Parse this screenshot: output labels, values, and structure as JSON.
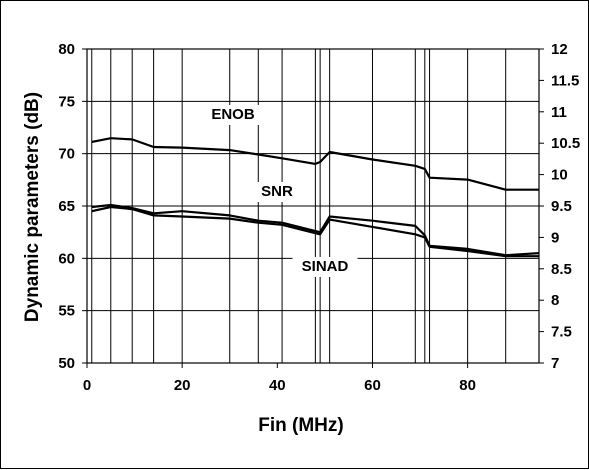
{
  "chart_data": {
    "type": "line",
    "title": "",
    "xlabel": "Fin (MHz)",
    "ylabel": "Dynamic parameters (dB)",
    "xlim": [
      0,
      95
    ],
    "ylim": [
      50,
      80
    ],
    "y2lim": [
      7,
      12
    ],
    "x_ticks": [
      0,
      20,
      40,
      60,
      80
    ],
    "y_ticks": [
      50,
      55,
      60,
      65,
      70,
      75,
      80
    ],
    "y2_ticks": [
      7,
      7.5,
      8,
      8.5,
      9,
      9.5,
      10,
      10.5,
      11,
      11.5,
      12
    ],
    "x_gridlines": [
      1,
      5,
      9.5,
      14,
      20,
      30,
      36,
      41,
      48,
      49,
      51,
      60,
      69,
      71,
      72,
      80,
      88,
      95
    ],
    "y_gridlines": [
      50,
      55,
      60,
      65,
      70,
      75,
      80
    ],
    "grid": true,
    "legend": "none",
    "series": [
      {
        "name": "ENOB",
        "x": [
          1,
          5,
          9.5,
          14,
          20,
          30,
          36,
          41,
          48,
          49,
          51,
          60,
          69,
          71,
          72,
          80,
          88,
          95
        ],
        "values": [
          10.52,
          10.58,
          10.56,
          10.44,
          10.43,
          10.39,
          10.32,
          10.26,
          10.17,
          10.2,
          10.36,
          10.24,
          10.14,
          10.09,
          9.95,
          9.92,
          9.76,
          9.76
        ]
      },
      {
        "name": "SNR",
        "x": [
          1,
          5,
          9.5,
          14,
          20,
          30,
          36,
          41,
          48,
          49,
          51,
          60,
          69,
          71,
          72,
          80,
          88,
          95
        ],
        "values": [
          64.9,
          65.1,
          64.8,
          64.3,
          64.5,
          64.1,
          63.6,
          63.4,
          62.6,
          62.5,
          64.0,
          63.6,
          63.1,
          62.2,
          61.2,
          60.9,
          60.3,
          60.5
        ]
      },
      {
        "name": "SINAD",
        "x": [
          1,
          5,
          9.5,
          14,
          20,
          30,
          36,
          41,
          48,
          49,
          51,
          60,
          69,
          71,
          72,
          80,
          88,
          95
        ],
        "values": [
          64.5,
          64.9,
          64.7,
          64.1,
          64.0,
          63.8,
          63.4,
          63.2,
          62.4,
          62.3,
          63.7,
          63.0,
          62.3,
          62.0,
          61.1,
          60.7,
          60.2,
          60.2
        ]
      }
    ],
    "annotations": [
      "ENOB",
      "SNR",
      "SINAD"
    ]
  }
}
